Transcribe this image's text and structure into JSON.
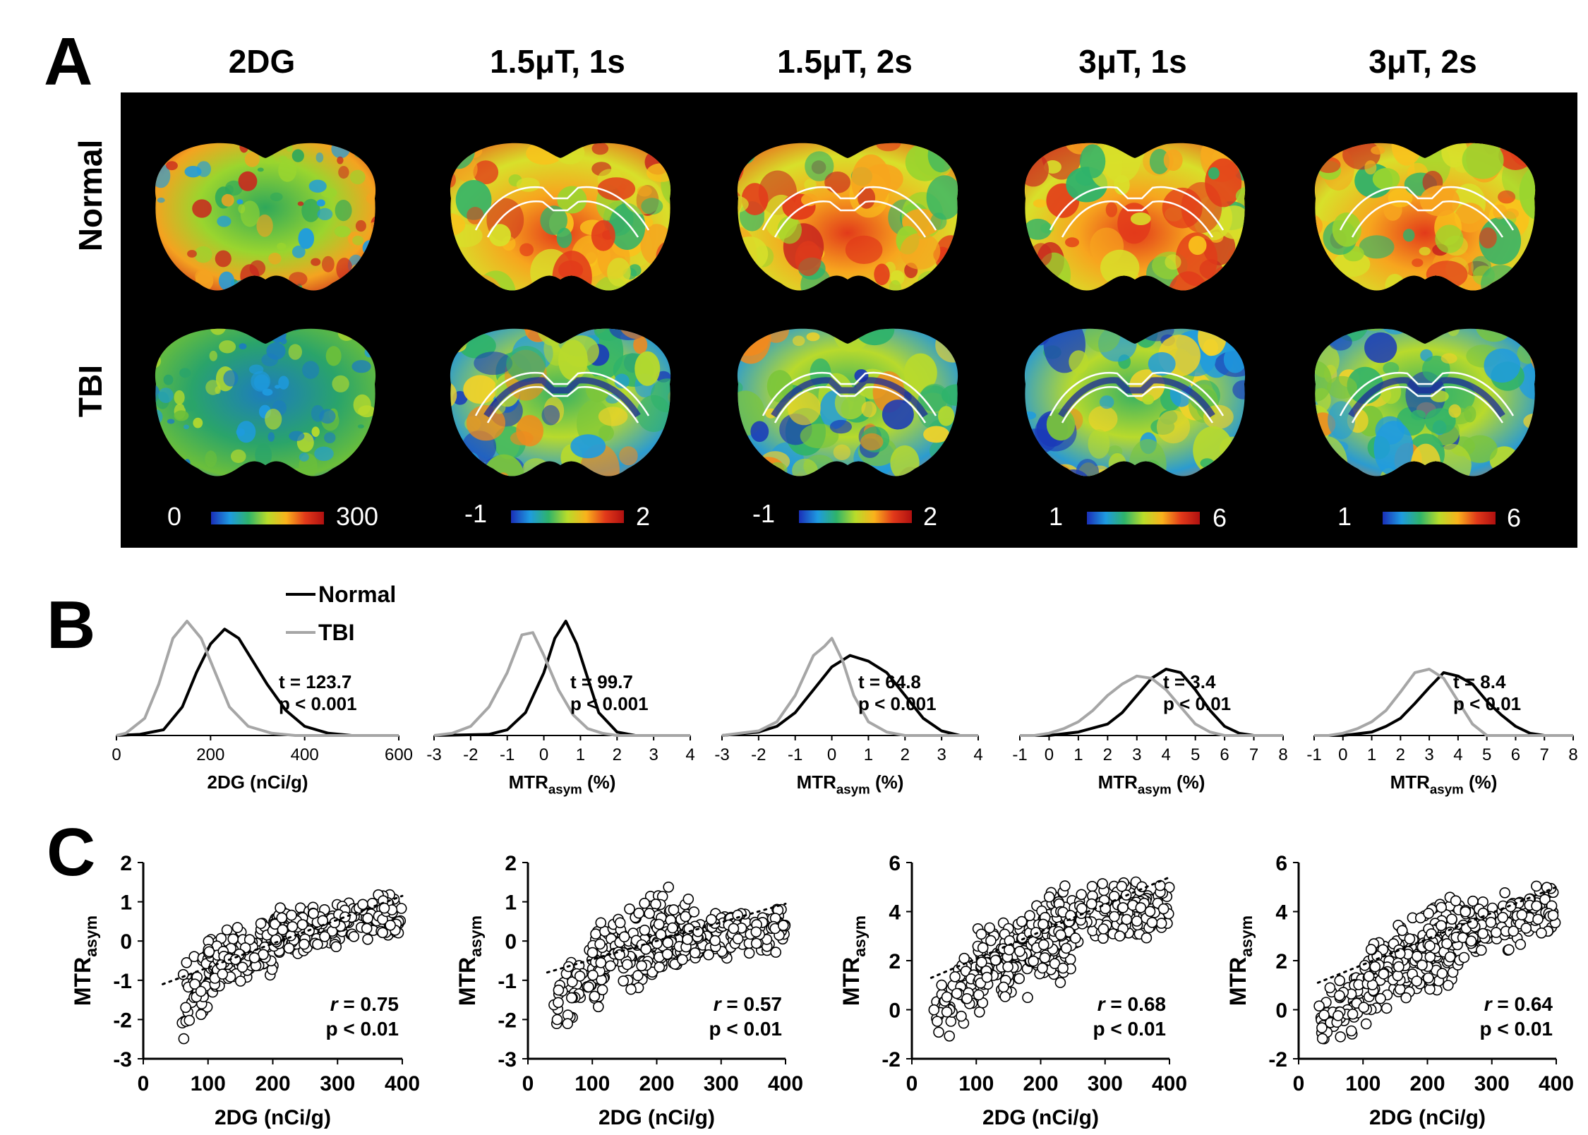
{
  "panel_letters": {
    "a": "A",
    "b": "B",
    "c": "C"
  },
  "panel_a": {
    "columns": [
      "2DG",
      "1.5μT, 1s",
      "1.5μT, 2s",
      "3μT, 1s",
      "3μT, 2s"
    ],
    "rows": [
      "Normal",
      "TBI"
    ],
    "colorbars": [
      {
        "min": "0",
        "max": "300"
      },
      {
        "min": "-1",
        "max": "2"
      },
      {
        "min": "-1",
        "max": "2"
      },
      {
        "min": "1",
        "max": "6"
      },
      {
        "min": "1",
        "max": "6"
      }
    ],
    "colors": {
      "background": "#000000",
      "roi_outline": "#ffffff"
    }
  },
  "legend": {
    "normal": "Normal",
    "tbi": "TBI",
    "normal_color": "#000000",
    "tbi_color": "#a6a6a6"
  },
  "chart_data": [
    {
      "id": "B1",
      "type": "line",
      "xlabel": "2DG (nCi/g)",
      "xlim": [
        0,
        600
      ],
      "xticks": [
        0,
        200,
        400,
        600
      ],
      "stat_t": "t = 123.7",
      "stat_p": "p < 0.001",
      "series": [
        {
          "name": "Normal",
          "x": [
            50,
            100,
            140,
            170,
            200,
            230,
            260,
            290,
            320,
            360,
            400,
            450,
            500
          ],
          "y": [
            0.01,
            0.05,
            0.25,
            0.55,
            0.8,
            0.93,
            0.85,
            0.65,
            0.45,
            0.22,
            0.08,
            0.02,
            0.0
          ]
        },
        {
          "name": "TBI",
          "x": [
            20,
            60,
            90,
            120,
            150,
            180,
            210,
            240,
            280,
            330,
            380
          ],
          "y": [
            0.02,
            0.15,
            0.45,
            0.85,
            1.0,
            0.85,
            0.55,
            0.25,
            0.08,
            0.02,
            0.0
          ]
        }
      ]
    },
    {
      "id": "B2",
      "type": "line",
      "xlabel": "MTRasym (%)",
      "xlim": [
        -3,
        4
      ],
      "xticks": [
        -3,
        -2,
        -1,
        0,
        1,
        2,
        3,
        4
      ],
      "stat_t": "t = 99.7",
      "stat_p": "p < 0.001",
      "series": [
        {
          "name": "Normal",
          "x": [
            -1.5,
            -1,
            -0.5,
            0,
            0.3,
            0.6,
            0.9,
            1.2,
            1.5,
            2,
            2.5
          ],
          "y": [
            0.01,
            0.05,
            0.2,
            0.55,
            0.85,
            1.0,
            0.8,
            0.5,
            0.2,
            0.03,
            0.0
          ]
        },
        {
          "name": "TBI",
          "x": [
            -3,
            -2.5,
            -2,
            -1.5,
            -1,
            -0.6,
            -0.3,
            0,
            0.4,
            0.8,
            1.2,
            1.6,
            2
          ],
          "y": [
            0.0,
            0.02,
            0.08,
            0.25,
            0.55,
            0.88,
            0.9,
            0.7,
            0.4,
            0.18,
            0.06,
            0.02,
            0.0
          ]
        }
      ]
    },
    {
      "id": "B3",
      "type": "line",
      "xlabel": "MTRasym (%)",
      "xlim": [
        -3,
        4
      ],
      "xticks": [
        -3,
        -2,
        -1,
        0,
        1,
        2,
        3,
        4
      ],
      "stat_t": "t = 64.8",
      "stat_p": "p < 0.001",
      "series": [
        {
          "name": "Normal",
          "x": [
            -3,
            -2,
            -1.5,
            -1,
            -0.5,
            0,
            0.5,
            1,
            1.5,
            2,
            2.5,
            3,
            3.5
          ],
          "y": [
            0.0,
            0.03,
            0.08,
            0.2,
            0.4,
            0.6,
            0.7,
            0.65,
            0.55,
            0.35,
            0.15,
            0.04,
            0.0
          ]
        },
        {
          "name": "TBI",
          "x": [
            -3,
            -2,
            -1.5,
            -1,
            -0.5,
            -0.2,
            0,
            0.3,
            0.6,
            1,
            1.5,
            2
          ],
          "y": [
            0.0,
            0.04,
            0.12,
            0.35,
            0.7,
            0.78,
            0.85,
            0.65,
            0.35,
            0.12,
            0.03,
            0.0
          ]
        }
      ]
    },
    {
      "id": "B4",
      "type": "line",
      "xlabel": "MTRasym (%)",
      "xlim": [
        -1,
        8
      ],
      "xticks": [
        -1,
        0,
        1,
        2,
        3,
        4,
        5,
        6,
        7,
        8
      ],
      "stat_t": "t = 3.4",
      "stat_p": "p < 0.01",
      "series": [
        {
          "name": "Normal",
          "x": [
            0,
            1,
            2,
            2.5,
            3,
            3.5,
            4,
            4.5,
            5,
            5.5,
            6,
            6.5,
            7
          ],
          "y": [
            0.0,
            0.03,
            0.1,
            0.2,
            0.35,
            0.5,
            0.58,
            0.55,
            0.4,
            0.22,
            0.08,
            0.02,
            0.0
          ]
        },
        {
          "name": "TBI",
          "x": [
            -0.5,
            0,
            0.5,
            1,
            1.5,
            2,
            2.5,
            3,
            3.5,
            4,
            4.5,
            5,
            5.5,
            6
          ],
          "y": [
            0.0,
            0.02,
            0.06,
            0.12,
            0.22,
            0.35,
            0.45,
            0.52,
            0.5,
            0.4,
            0.25,
            0.1,
            0.03,
            0.0
          ]
        }
      ]
    },
    {
      "id": "B5",
      "type": "line",
      "xlabel": "MTRasym (%)",
      "xlim": [
        -1,
        8
      ],
      "xticks": [
        -1,
        0,
        1,
        2,
        3,
        4,
        5,
        6,
        7,
        8
      ],
      "stat_t": "t = 8.4",
      "stat_p": "p < 0.01",
      "series": [
        {
          "name": "Normal",
          "x": [
            0,
            1,
            1.5,
            2,
            2.5,
            3,
            3.5,
            4,
            4.5,
            5,
            5.5,
            6,
            6.5,
            7
          ],
          "y": [
            0.0,
            0.03,
            0.08,
            0.15,
            0.28,
            0.42,
            0.55,
            0.52,
            0.45,
            0.3,
            0.18,
            0.08,
            0.02,
            0.0
          ]
        },
        {
          "name": "TBI",
          "x": [
            -0.5,
            0,
            0.5,
            1,
            1.5,
            2,
            2.5,
            3,
            3.5,
            4,
            4.5,
            5
          ],
          "y": [
            0.0,
            0.02,
            0.06,
            0.12,
            0.22,
            0.38,
            0.55,
            0.58,
            0.5,
            0.3,
            0.1,
            0.0
          ]
        }
      ]
    },
    {
      "id": "C1",
      "type": "scatter",
      "xlabel": "2DG (nCi/g)",
      "ylabel": "MTRasym",
      "xlim": [
        0,
        400
      ],
      "ylim": [
        -3,
        2
      ],
      "xticks": [
        0,
        100,
        200,
        300,
        400
      ],
      "yticks": [
        -3,
        -2,
        -1,
        0,
        1,
        2
      ],
      "r_label": "r",
      "r_value": " = 0.75",
      "p": "p < 0.01",
      "trend": [
        [
          30,
          -1.1
        ],
        [
          400,
          1.15
        ]
      ],
      "clouds": [
        {
          "x0": 60,
          "x1": 130,
          "ylo": [
            -2.6,
            -1.4
          ],
          "yhi": [
            -0.4,
            0.5
          ],
          "n": 70
        },
        {
          "x0": 100,
          "x1": 250,
          "ylo": [
            -1.5,
            -0.6
          ],
          "yhi": [
            0.3,
            1.0
          ],
          "n": 170
        },
        {
          "x0": 200,
          "x1": 400,
          "ylo": [
            -0.5,
            0.0
          ],
          "yhi": [
            0.9,
            1.3
          ],
          "n": 170
        }
      ]
    },
    {
      "id": "C2",
      "type": "scatter",
      "xlabel": "2DG (nCi/g)",
      "ylabel": "MTRasym",
      "xlim": [
        0,
        400
      ],
      "ylim": [
        -3,
        2
      ],
      "xticks": [
        0,
        100,
        200,
        300,
        400
      ],
      "yticks": [
        -3,
        -2,
        -1,
        0,
        1,
        2
      ],
      "r_label": "r",
      "r_value": " = 0.57",
      "p": "p < 0.01",
      "trend": [
        [
          30,
          -0.8
        ],
        [
          400,
          0.95
        ]
      ],
      "clouds": [
        {
          "x0": 40,
          "x1": 120,
          "ylo": [
            -2.5,
            -1.6
          ],
          "yhi": [
            -0.6,
            0.5
          ],
          "n": 60
        },
        {
          "x0": 100,
          "x1": 250,
          "ylo": [
            -1.7,
            -0.8
          ],
          "yhi": [
            0.5,
            1.7
          ],
          "n": 170
        },
        {
          "x0": 200,
          "x1": 400,
          "ylo": [
            -0.9,
            -0.3
          ],
          "yhi": [
            0.8,
            1.0
          ],
          "n": 170
        }
      ]
    },
    {
      "id": "C3",
      "type": "scatter",
      "xlabel": "2DG (nCi/g)",
      "ylabel": "MTRasym",
      "xlim": [
        0,
        400
      ],
      "ylim": [
        -2,
        6
      ],
      "xticks": [
        0,
        100,
        200,
        300,
        400
      ],
      "yticks": [
        -2,
        0,
        2,
        4,
        6
      ],
      "r_label": "r",
      "r_value": " = 0.68",
      "p": "p < 0.01",
      "trend": [
        [
          30,
          1.3
        ],
        [
          400,
          5.4
        ]
      ],
      "clouds": [
        {
          "x0": 30,
          "x1": 110,
          "ylo": [
            -1.6,
            -0.5
          ],
          "yhi": [
            1.0,
            3.5
          ],
          "n": 60
        },
        {
          "x0": 100,
          "x1": 250,
          "ylo": [
            -0.3,
            1.0
          ],
          "yhi": [
            3.5,
            5.2
          ],
          "n": 190
        },
        {
          "x0": 200,
          "x1": 400,
          "ylo": [
            1.8,
            3.0
          ],
          "yhi": [
            5.2,
            5.4
          ],
          "n": 170
        }
      ]
    },
    {
      "id": "C4",
      "type": "scatter",
      "xlabel": "2DG (nCi/g)",
      "ylabel": "MTRasym",
      "xlim": [
        0,
        400
      ],
      "ylim": [
        -2,
        6
      ],
      "xticks": [
        0,
        100,
        200,
        300,
        400
      ],
      "yticks": [
        -2,
        0,
        2,
        4,
        6
      ],
      "r_label": "r",
      "r_value": " = 0.64",
      "p": "p < 0.01",
      "trend": [
        [
          30,
          1.1
        ],
        [
          400,
          5.0
        ]
      ],
      "clouds": [
        {
          "x0": 30,
          "x1": 110,
          "ylo": [
            -1.7,
            -0.8
          ],
          "yhi": [
            0.5,
            2.5
          ],
          "n": 60
        },
        {
          "x0": 100,
          "x1": 250,
          "ylo": [
            -0.6,
            1.0
          ],
          "yhi": [
            3.0,
            5.0
          ],
          "n": 190
        },
        {
          "x0": 200,
          "x1": 400,
          "ylo": [
            1.5,
            2.8
          ],
          "yhi": [
            4.5,
            5.2
          ],
          "n": 170
        }
      ]
    }
  ]
}
